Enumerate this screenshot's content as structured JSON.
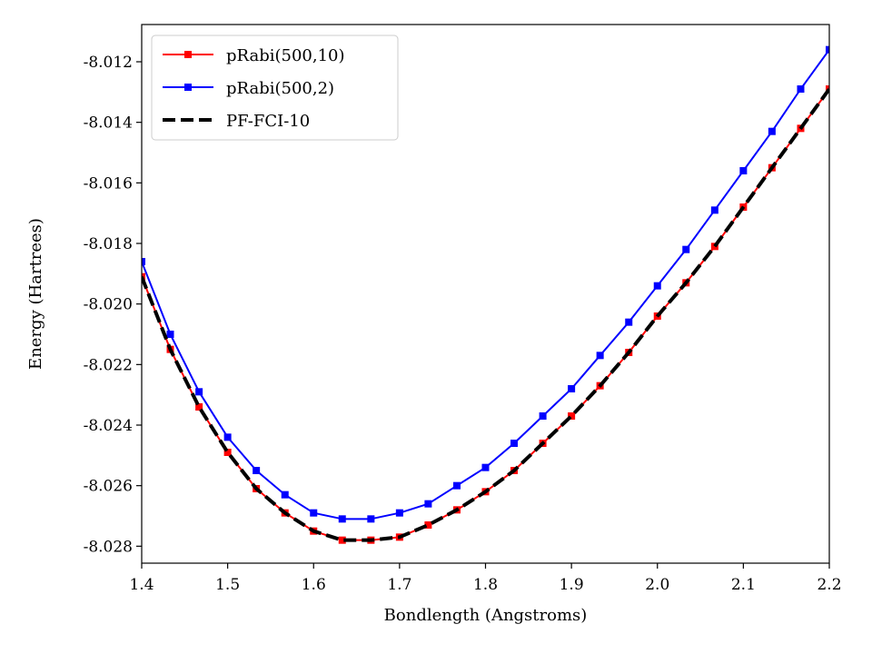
{
  "chart_data": {
    "type": "line",
    "xlabel": "Bondlength (Angstroms)",
    "ylabel": "Energy (Hartrees)",
    "xlim": [
      1.4,
      2.2
    ],
    "ylim": [
      -8.02856,
      -8.01077
    ],
    "x_ticks": [
      1.4,
      1.5,
      1.6,
      1.7,
      1.8,
      1.9,
      2.0,
      2.1,
      2.2
    ],
    "y_ticks": [
      -8.028,
      -8.026,
      -8.024,
      -8.022,
      -8.02,
      -8.018,
      -8.016,
      -8.014,
      -8.012
    ],
    "x_tick_labels": [
      "1.4",
      "1.5",
      "1.6",
      "1.7",
      "1.8",
      "1.9",
      "2.0",
      "2.1",
      "2.2"
    ],
    "y_tick_labels": [
      "-8.028",
      "-8.026",
      "-8.024",
      "-8.022",
      "-8.020",
      "-8.018",
      "-8.016",
      "-8.014",
      "-8.012"
    ],
    "grid": false,
    "legend_position": "top-left",
    "x": [
      1.4,
      1.4333,
      1.4667,
      1.5,
      1.5333,
      1.5667,
      1.6,
      1.6333,
      1.6667,
      1.7,
      1.7333,
      1.7667,
      1.8,
      1.8333,
      1.8667,
      1.9,
      1.9333,
      1.9667,
      2.0,
      2.0333,
      2.0667,
      2.1,
      2.1333,
      2.1667,
      2.2
    ],
    "series": [
      {
        "name": "pRabi(500,10)",
        "color": "#ff0000",
        "style": "solid",
        "marker": "square",
        "values": [
          -8.0191,
          -8.0215,
          -8.0234,
          -8.0249,
          -8.0261,
          -8.0269,
          -8.0275,
          -8.0278,
          -8.0278,
          -8.0277,
          -8.0273,
          -8.0268,
          -8.0262,
          -8.0255,
          -8.0246,
          -8.0237,
          -8.0227,
          -8.0216,
          -8.0204,
          -8.0193,
          -8.0181,
          -8.0168,
          -8.0155,
          -8.0142,
          -8.0129
        ]
      },
      {
        "name": "pRabi(500,2)",
        "color": "#0000ff",
        "style": "solid",
        "marker": "square",
        "values": [
          -8.0186,
          -8.021,
          -8.0229,
          -8.0244,
          -8.0255,
          -8.0263,
          -8.0269,
          -8.0271,
          -8.0271,
          -8.0269,
          -8.0266,
          -8.026,
          -8.0254,
          -8.0246,
          -8.0237,
          -8.0228,
          -8.0217,
          -8.0206,
          -8.0194,
          -8.0182,
          -8.0169,
          -8.0156,
          -8.0143,
          -8.0129,
          -8.0116
        ]
      },
      {
        "name": "PF-FCI-10",
        "color": "#000000",
        "style": "dashed",
        "marker": "none",
        "values": [
          -8.0191,
          -8.0215,
          -8.0234,
          -8.0249,
          -8.0261,
          -8.0269,
          -8.0275,
          -8.0278,
          -8.0278,
          -8.0277,
          -8.0273,
          -8.0268,
          -8.0262,
          -8.0255,
          -8.0246,
          -8.0237,
          -8.0227,
          -8.0216,
          -8.0204,
          -8.0193,
          -8.0181,
          -8.0168,
          -8.0155,
          -8.0142,
          -8.0129
        ]
      }
    ]
  }
}
